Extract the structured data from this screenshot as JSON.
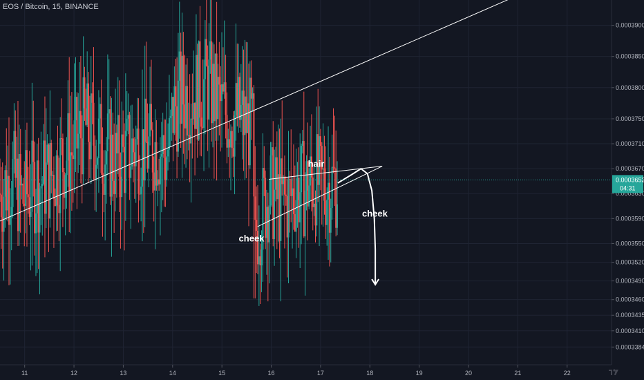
{
  "header": {
    "title": "EOS / Bitcoin, 15, BINANCE"
  },
  "colors": {
    "background": "#131722",
    "grid": "#1f2433",
    "up": "#26a69a",
    "down": "#ef5350",
    "line": "#ffffff",
    "price_tag": "#26a69a"
  },
  "chart_data": {
    "type": "candlestick",
    "ylim": [
      3.3555e-05,
      3.9405e-05
    ],
    "xlim": [
      10.5,
      22.9
    ],
    "yticks": [
      "0.0003900",
      "0.0003850",
      "0.0003800",
      "0.0003750",
      "0.0003710",
      "0.0003670",
      "0.0003630",
      "0.0003590",
      "0.0003550",
      "0.0003520",
      "0.0003490",
      "0.0003460",
      "0.0003435",
      "0.0003410",
      "0.0003384"
    ],
    "ytick_values": [
      3.9e-05,
      3.85e-05,
      3.8e-05,
      3.75e-05,
      3.71e-05,
      3.67e-05,
      3.63e-05,
      3.59e-05,
      3.55e-05,
      3.52e-05,
      3.49e-05,
      3.46e-05,
      3.435e-05,
      3.41e-05,
      3.384e-05
    ],
    "xticks": [
      "11",
      "12",
      "13",
      "14",
      "15",
      "16",
      "17",
      "18",
      "19",
      "20",
      "21",
      "22"
    ],
    "xtick_values": [
      11,
      12,
      13,
      14,
      15,
      16,
      17,
      18,
      19,
      20,
      21,
      22
    ],
    "current_price": {
      "label": "0.0003652",
      "value": 3.652e-05,
      "countdown": "04:31"
    },
    "trendlines": [
      {
        "name": "long-trendline",
        "points": [
          [
            10.5,
            3.586e-05
          ],
          [
            20.8,
            3.941e-05
          ]
        ]
      },
      {
        "name": "wedge-upper",
        "points": [
          [
            15.95,
            3.653e-05
          ],
          [
            18.25,
            3.674e-05
          ]
        ]
      },
      {
        "name": "wedge-lower",
        "points": [
          [
            15.72,
            3.577e-05
          ],
          [
            18.25,
            3.674e-05
          ]
        ]
      }
    ],
    "projection": [
      [
        17.35,
        3.647e-05
      ],
      [
        17.6,
        3.659e-05
      ],
      [
        17.82,
        3.67e-05
      ],
      [
        17.95,
        3.662e-05
      ],
      [
        18.04,
        3.635e-05
      ],
      [
        18.09,
        3.59e-05
      ],
      [
        18.11,
        3.54e-05
      ],
      [
        18.11,
        3.484e-05
      ]
    ],
    "annotations": [
      {
        "text": "hair",
        "x": 16.91,
        "y": 3.673e-05
      },
      {
        "text": "cheek",
        "x": 15.6,
        "y": 3.553e-05
      },
      {
        "text": "cheek",
        "x": 18.1,
        "y": 3.593e-05
      }
    ],
    "price_path": [
      [
        10.5,
        3.63e-05
      ],
      [
        10.75,
        3.66e-05
      ],
      [
        10.95,
        3.62e-05
      ],
      [
        11.15,
        3.64e-05
      ],
      [
        11.35,
        3.65e-05
      ],
      [
        11.55,
        3.66e-05
      ],
      [
        11.8,
        3.69e-05
      ],
      [
        12.0,
        3.7e-05
      ],
      [
        12.2,
        3.74e-05
      ],
      [
        12.4,
        3.72e-05
      ],
      [
        12.65,
        3.7e-05
      ],
      [
        12.85,
        3.68e-05
      ],
      [
        13.05,
        3.69e-05
      ],
      [
        13.3,
        3.71e-05
      ],
      [
        13.5,
        3.7e-05
      ],
      [
        13.7,
        3.71e-05
      ],
      [
        13.85,
        3.69e-05
      ],
      [
        13.95,
        3.71e-05
      ],
      [
        14.0,
        3.76e-05
      ],
      [
        14.15,
        3.785e-05
      ],
      [
        14.35,
        3.79e-05
      ],
      [
        14.55,
        3.795e-05
      ],
      [
        14.7,
        3.81e-05
      ],
      [
        14.85,
        3.785e-05
      ],
      [
        15.0,
        3.765e-05
      ],
      [
        15.2,
        3.755e-05
      ],
      [
        15.4,
        3.75e-05
      ],
      [
        15.62,
        3.735e-05
      ],
      [
        15.66,
        3.51e-05
      ],
      [
        15.7,
        3.575e-05
      ],
      [
        15.8,
        3.6e-05
      ],
      [
        15.95,
        3.635e-05
      ],
      [
        16.1,
        3.62e-05
      ],
      [
        16.3,
        3.615e-05
      ],
      [
        16.5,
        3.635e-05
      ],
      [
        16.7,
        3.64e-05
      ],
      [
        16.9,
        3.655e-05
      ],
      [
        17.0,
        3.64e-05
      ],
      [
        17.15,
        3.645e-05
      ],
      [
        17.35,
        3.652e-05
      ]
    ]
  }
}
